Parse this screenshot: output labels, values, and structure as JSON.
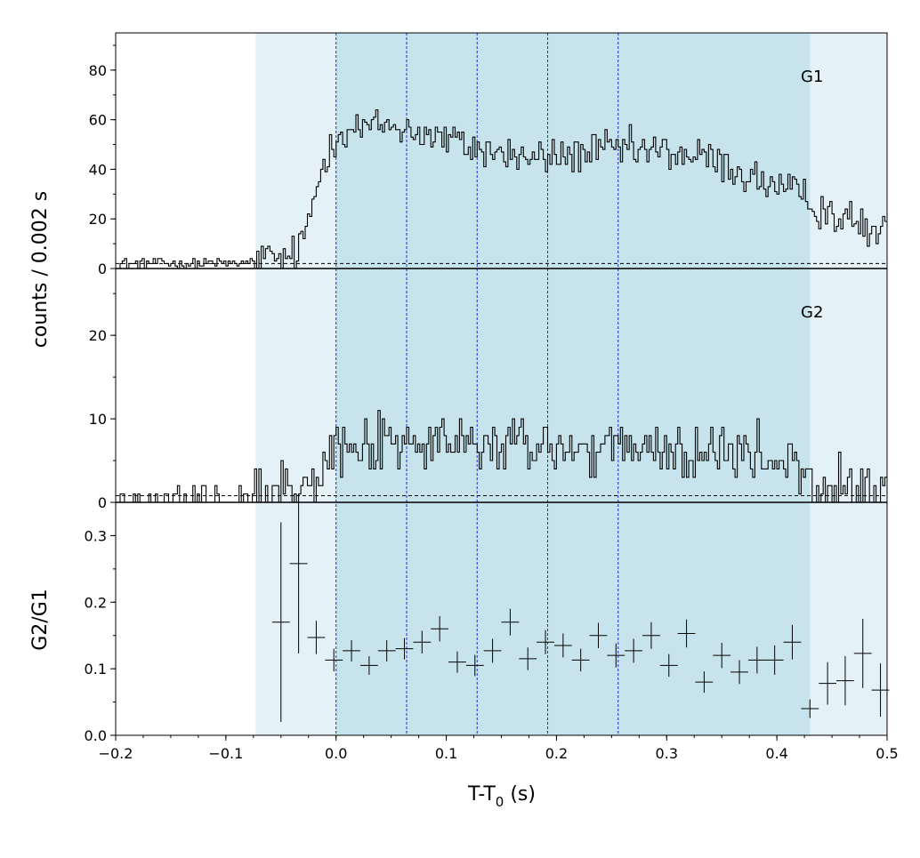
{
  "chart_data": {
    "type": "line",
    "shared_x": {
      "label_main": "T-T",
      "label_sub": "0",
      "label_unit": " (s)",
      "xlim": [
        -0.2,
        0.5
      ],
      "ticks": [
        -0.2,
        -0.1,
        0.0,
        0.1,
        0.2,
        0.3,
        0.4,
        0.5
      ],
      "tick_labels": [
        "−0.2",
        "−0.1",
        "0.0",
        "0.1",
        "0.2",
        "0.3",
        "0.4",
        "0.5"
      ]
    },
    "shared_ylabel": "counts /  0.002 s",
    "shaded_regions": [
      {
        "from": -0.073,
        "to": 0.5,
        "color": "#e4f2f7"
      },
      {
        "from": 0.0,
        "to": 0.43,
        "color": "#c7e4ed"
      }
    ],
    "dashed_verticals": [
      0.0,
      0.064,
      0.128,
      0.192,
      0.256
    ],
    "panels": [
      {
        "id": "g1",
        "label": "G1",
        "type": "step",
        "ylim": [
          0,
          95
        ],
        "yticks": [
          0,
          20,
          40,
          60,
          80
        ],
        "ytick_labels": [
          "0",
          "20",
          "40",
          "60",
          "80"
        ],
        "background_level": 2,
        "bin_width": 0.002,
        "envelope": [
          [
            -0.2,
            2
          ],
          [
            -0.075,
            2
          ],
          [
            -0.07,
            4
          ],
          [
            -0.04,
            4
          ],
          [
            -0.03,
            10
          ],
          [
            -0.02,
            28
          ],
          [
            -0.01,
            45
          ],
          [
            0.0,
            55
          ],
          [
            0.05,
            58
          ],
          [
            0.1,
            52
          ],
          [
            0.13,
            48
          ],
          [
            0.18,
            44
          ],
          [
            0.25,
            48
          ],
          [
            0.3,
            47
          ],
          [
            0.34,
            44
          ],
          [
            0.37,
            38
          ],
          [
            0.4,
            33
          ],
          [
            0.43,
            27
          ],
          [
            0.46,
            20
          ],
          [
            0.5,
            13
          ]
        ],
        "noise_amplitude": 8
      },
      {
        "id": "g2",
        "label": "G2",
        "type": "step",
        "ylim": [
          0,
          28
        ],
        "yticks": [
          0,
          10,
          20
        ],
        "ytick_labels": [
          "0",
          "10",
          "20"
        ],
        "background_level": 0.8,
        "bin_width": 0.002,
        "envelope": [
          [
            -0.2,
            0.6
          ],
          [
            -0.075,
            0.6
          ],
          [
            -0.07,
            1.2
          ],
          [
            -0.03,
            2
          ],
          [
            -0.02,
            4
          ],
          [
            -0.01,
            6
          ],
          [
            0.0,
            7
          ],
          [
            0.1,
            7
          ],
          [
            0.2,
            6.5
          ],
          [
            0.3,
            6
          ],
          [
            0.38,
            5.5
          ],
          [
            0.42,
            4
          ],
          [
            0.43,
            1.5
          ],
          [
            0.5,
            1.5
          ]
        ],
        "noise_amplitude": 3.5
      },
      {
        "id": "ratio",
        "label": "",
        "ylabel": "G2/G1",
        "type": "errorbar",
        "ylim": [
          0,
          0.35
        ],
        "yticks": [
          0.0,
          0.1,
          0.2,
          0.3
        ],
        "ytick_labels": [
          "0.0",
          "0.1",
          "0.2",
          "0.3"
        ],
        "points": [
          {
            "x": -0.05,
            "y": 0.17,
            "yerr": 0.15,
            "xerr": 0.008
          },
          {
            "x": -0.034,
            "y": 0.258,
            "yerr": 0.135,
            "xerr": 0.008
          },
          {
            "x": -0.018,
            "y": 0.147,
            "yerr": 0.025,
            "xerr": 0.008
          },
          {
            "x": -0.002,
            "y": 0.113,
            "yerr": 0.017,
            "xerr": 0.008
          },
          {
            "x": 0.014,
            "y": 0.127,
            "yerr": 0.016,
            "xerr": 0.008
          },
          {
            "x": 0.03,
            "y": 0.105,
            "yerr": 0.014,
            "xerr": 0.008
          },
          {
            "x": 0.046,
            "y": 0.127,
            "yerr": 0.016,
            "xerr": 0.008
          },
          {
            "x": 0.062,
            "y": 0.13,
            "yerr": 0.016,
            "xerr": 0.008
          },
          {
            "x": 0.078,
            "y": 0.14,
            "yerr": 0.017,
            "xerr": 0.008
          },
          {
            "x": 0.094,
            "y": 0.16,
            "yerr": 0.019,
            "xerr": 0.008
          },
          {
            "x": 0.11,
            "y": 0.11,
            "yerr": 0.016,
            "xerr": 0.008
          },
          {
            "x": 0.126,
            "y": 0.105,
            "yerr": 0.016,
            "xerr": 0.008
          },
          {
            "x": 0.142,
            "y": 0.127,
            "yerr": 0.018,
            "xerr": 0.008
          },
          {
            "x": 0.158,
            "y": 0.17,
            "yerr": 0.02,
            "xerr": 0.008
          },
          {
            "x": 0.174,
            "y": 0.115,
            "yerr": 0.017,
            "xerr": 0.008
          },
          {
            "x": 0.19,
            "y": 0.14,
            "yerr": 0.018,
            "xerr": 0.008
          },
          {
            "x": 0.206,
            "y": 0.135,
            "yerr": 0.018,
            "xerr": 0.008
          },
          {
            "x": 0.222,
            "y": 0.113,
            "yerr": 0.017,
            "xerr": 0.008
          },
          {
            "x": 0.238,
            "y": 0.15,
            "yerr": 0.019,
            "xerr": 0.008
          },
          {
            "x": 0.254,
            "y": 0.12,
            "yerr": 0.018,
            "xerr": 0.008
          },
          {
            "x": 0.27,
            "y": 0.127,
            "yerr": 0.018,
            "xerr": 0.008
          },
          {
            "x": 0.286,
            "y": 0.15,
            "yerr": 0.02,
            "xerr": 0.008
          },
          {
            "x": 0.302,
            "y": 0.105,
            "yerr": 0.017,
            "xerr": 0.008
          },
          {
            "x": 0.318,
            "y": 0.153,
            "yerr": 0.021,
            "xerr": 0.008
          },
          {
            "x": 0.334,
            "y": 0.08,
            "yerr": 0.016,
            "xerr": 0.008
          },
          {
            "x": 0.35,
            "y": 0.12,
            "yerr": 0.019,
            "xerr": 0.008
          },
          {
            "x": 0.366,
            "y": 0.095,
            "yerr": 0.018,
            "xerr": 0.008
          },
          {
            "x": 0.382,
            "y": 0.113,
            "yerr": 0.02,
            "xerr": 0.008
          },
          {
            "x": 0.398,
            "y": 0.113,
            "yerr": 0.022,
            "xerr": 0.008
          },
          {
            "x": 0.414,
            "y": 0.14,
            "yerr": 0.026,
            "xerr": 0.008
          },
          {
            "x": 0.43,
            "y": 0.04,
            "yerr": 0.014,
            "xerr": 0.008
          },
          {
            "x": 0.446,
            "y": 0.078,
            "yerr": 0.032,
            "xerr": 0.008
          },
          {
            "x": 0.462,
            "y": 0.082,
            "yerr": 0.037,
            "xerr": 0.008
          },
          {
            "x": 0.478,
            "y": 0.123,
            "yerr": 0.052,
            "xerr": 0.008
          },
          {
            "x": 0.494,
            "y": 0.068,
            "yerr": 0.04,
            "xerr": 0.008
          }
        ]
      }
    ]
  }
}
